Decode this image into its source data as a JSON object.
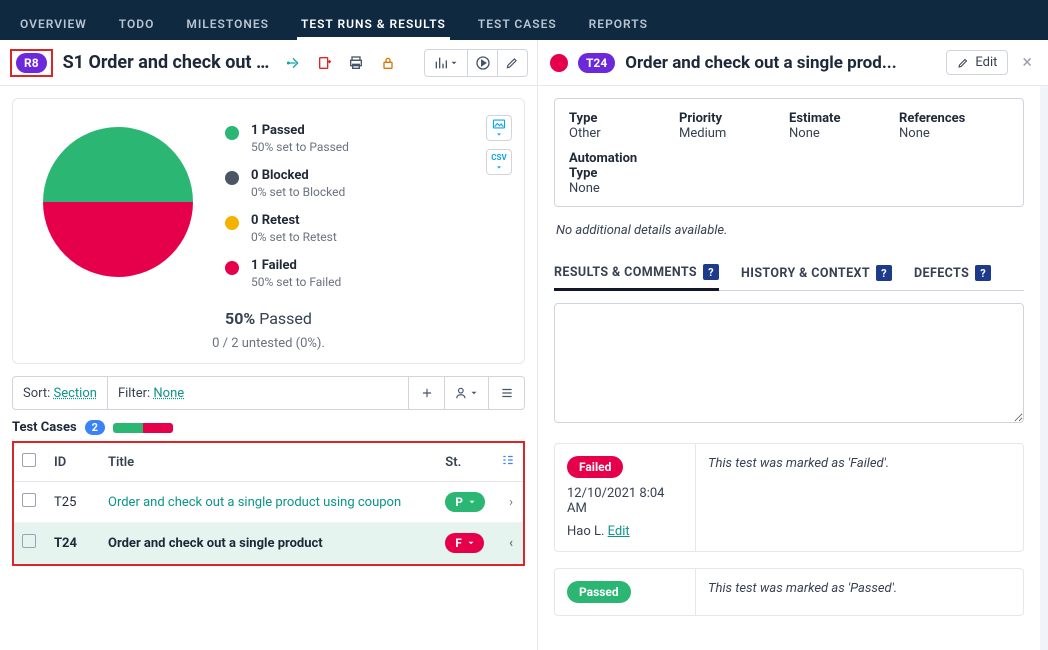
{
  "colors": {
    "passed": "#2bb673",
    "blocked": "#4b5563",
    "retest": "#f5b301",
    "failed": "#e6004c",
    "accent": "#0d9488",
    "pill_purple": "#6d28d9",
    "nav_bg": "#0f2a40",
    "highlight_border": "#dc2626"
  },
  "nav": {
    "items": [
      "OVERVIEW",
      "TODO",
      "MILESTONES",
      "TEST RUNS & RESULTS",
      "TEST CASES",
      "REPORTS"
    ]
  },
  "run": {
    "badge": "R8",
    "title": "S1 Order and check out a ...",
    "summary_pct": "50%",
    "summary_pct_label": "Passed",
    "untested_line": "0 / 2 untested (0%).",
    "pie": {
      "passed_pct": 50,
      "failed_pct": 50
    },
    "legend": [
      {
        "label": "1 Passed",
        "sub": "50% set to Passed",
        "color": "#2bb673"
      },
      {
        "label": "0 Blocked",
        "sub": "0% set to Blocked",
        "color": "#4b5563"
      },
      {
        "label": "0 Retest",
        "sub": "0% set to Retest",
        "color": "#f5b301"
      },
      {
        "label": "1 Failed",
        "sub": "50% set to Failed",
        "color": "#e6004c"
      }
    ]
  },
  "sortfilter": {
    "sort_label": "Sort:",
    "sort_value": "Section",
    "filter_label": "Filter:",
    "filter_value": "None"
  },
  "cases": {
    "heading": "Test Cases",
    "count": "2",
    "minibar": [
      {
        "color": "#2bb673",
        "pct": 50
      },
      {
        "color": "#e6004c",
        "pct": 50
      }
    ],
    "columns": {
      "id": "ID",
      "title": "Title",
      "st": "St."
    },
    "rows": [
      {
        "id": "T25",
        "title": "Order and check out a single product using coupon",
        "status_letter": "P",
        "status_color": "#2bb673",
        "selected": false,
        "chev": "›"
      },
      {
        "id": "T24",
        "title": "Order and check out a single product",
        "status_letter": "F",
        "status_color": "#e6004c",
        "selected": true,
        "chev": "‹"
      }
    ]
  },
  "detail": {
    "status_color": "#e6004c",
    "badge": "T24",
    "title": "Order and check out a single prod...",
    "edit_label": "Edit",
    "meta": {
      "type_label": "Type",
      "type_value": "Other",
      "priority_label": "Priority",
      "priority_value": "Medium",
      "estimate_label": "Estimate",
      "estimate_value": "None",
      "references_label": "References",
      "references_value": "None",
      "automation_label": "Automation Type",
      "automation_value": "None"
    },
    "no_details": "No additional details available.",
    "tabs": {
      "results": "RESULTS & COMMENTS",
      "history": "HISTORY & CONTEXT",
      "defects": "DEFECTS"
    },
    "results": [
      {
        "status_label": "Failed",
        "status_color": "#e6004c",
        "timestamp": "12/10/2021 8:04 AM",
        "author": "Hao L.",
        "edit": "Edit",
        "message": "This test was marked as 'Failed'."
      },
      {
        "status_label": "Passed",
        "status_color": "#2bb673",
        "message": "This test was marked as 'Passed'."
      }
    ]
  }
}
